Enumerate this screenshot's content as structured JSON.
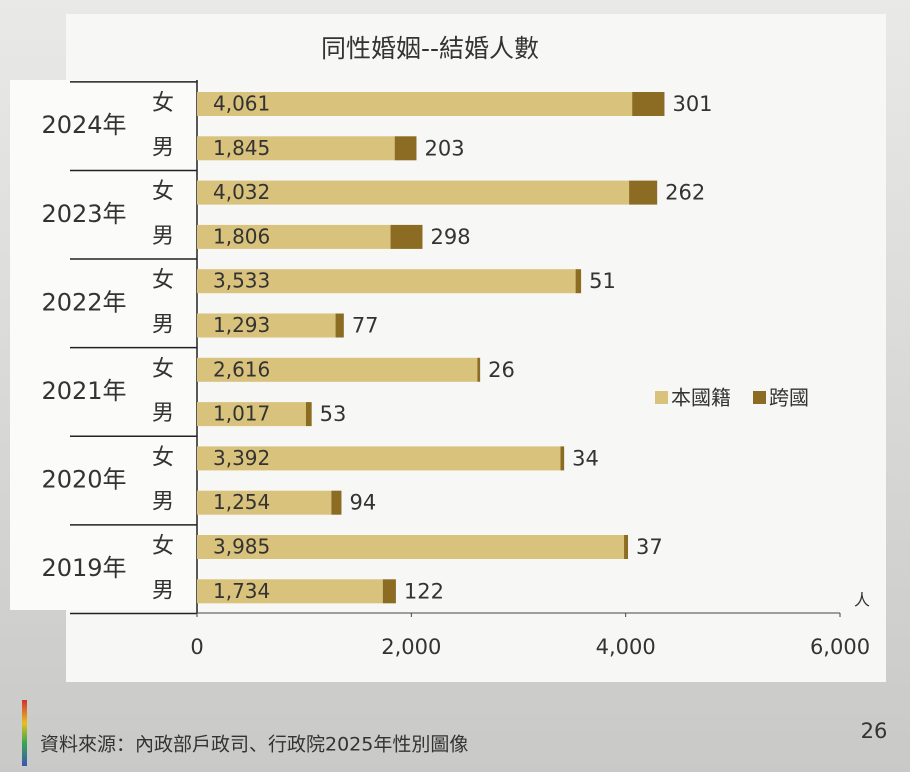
{
  "chart_data": {
    "type": "bar",
    "orientation": "horizontal",
    "stacked": true,
    "title": "同性婚姻--結婚人數",
    "groups": [
      "2024年",
      "2023年",
      "2022年",
      "2021年",
      "2020年",
      "2019年"
    ],
    "categories": [
      "女",
      "男",
      "女",
      "男",
      "女",
      "男",
      "女",
      "男",
      "女",
      "男",
      "女",
      "男"
    ],
    "series": [
      {
        "name": "本國籍",
        "color": "#d8c27c",
        "values": [
          4061,
          1845,
          4032,
          1806,
          3533,
          1293,
          2616,
          1017,
          3392,
          1254,
          3985,
          1734
        ],
        "value_labels": [
          "4,061",
          "1,845",
          "4,032",
          "1,806",
          "3,533",
          "1,293",
          "2,616",
          "1,017",
          "3,392",
          "1,254",
          "3,985",
          "1,734"
        ]
      },
      {
        "name": "跨國",
        "color": "#8c6b23",
        "values": [
          301,
          203,
          262,
          298,
          51,
          77,
          26,
          53,
          34,
          94,
          37,
          122
        ]
      }
    ],
    "xlim": [
      0,
      6000
    ],
    "xticks": [
      0,
      {
        "value": 2000,
        "label": "2,000"
      },
      {
        "value": 4000,
        "label": "4,000"
      },
      {
        "value": 6000,
        "label": "6,000"
      }
    ],
    "x_label": "人",
    "legend": "right",
    "source": "資料來源：內政部戶政司、行政院2025年性別圖像",
    "page_number": 26
  }
}
